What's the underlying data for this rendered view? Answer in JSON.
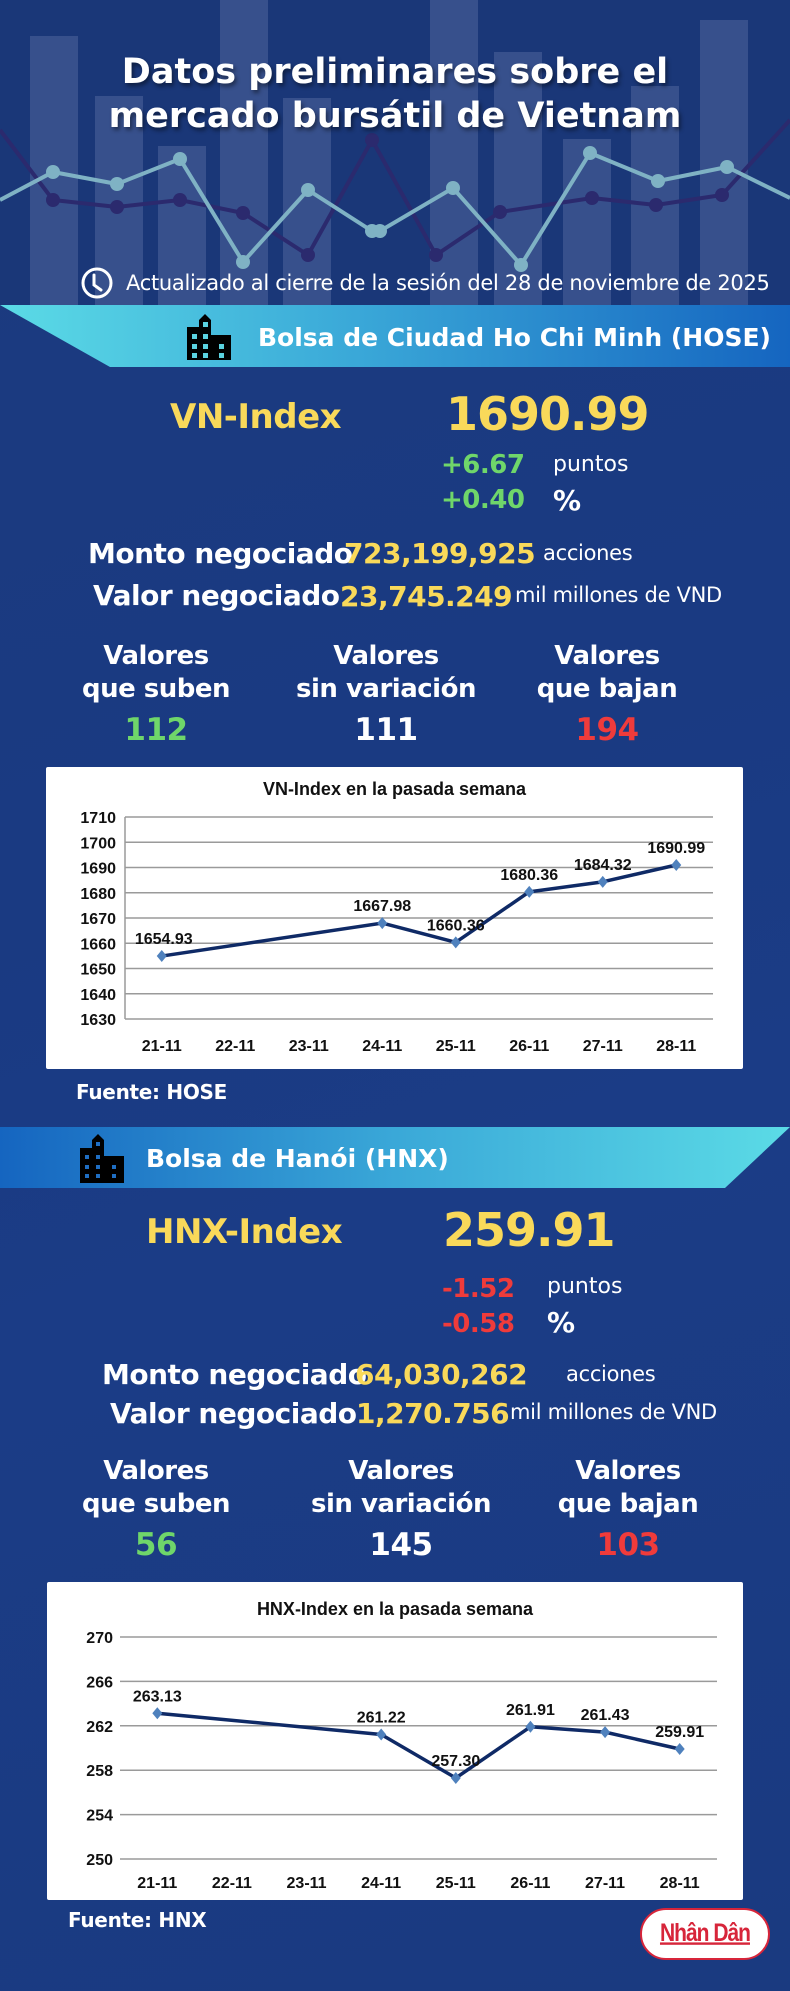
{
  "header": {
    "title_line1": "Datos preliminares sobre el",
    "title_line2": "mercado bursátil de Vietnam",
    "updated": "Actualizado al cierre de la sesión del 28 de noviembre de 2025",
    "icon": "clock-icon"
  },
  "colors": {
    "background": "#1b3a80",
    "accent_yellow": "#f9d95a",
    "up_green": "#6fd66a",
    "down_red": "#ef3b3b",
    "banner_cyan": "#5bd9e4",
    "banner_blue": "#1565c0",
    "chart_line": "#0f2a66",
    "chart_marker": "#4f81bd"
  },
  "hose": {
    "banner_title": "Bolsa de Ciudad Ho Chi Minh (HOSE)",
    "banner_icon": "building-icon",
    "index_name": "VN-Index",
    "index_value": "1690.99",
    "change_points": "+6.67",
    "change_points_unit": "puntos",
    "change_percent": "+0.40",
    "change_percent_unit": "%",
    "volume_label": "Monto negociado",
    "volume_value": "723,199,925",
    "volume_unit": "acciones",
    "value_label": "Valor negociado",
    "value_value": "23,745.249",
    "value_unit": "mil millones de VND",
    "advancers_label_1": "Valores",
    "advancers_label_2": "que suben",
    "advancers": "112",
    "unchanged_label_1": "Valores",
    "unchanged_label_2": "sin variación",
    "unchanged": "111",
    "decliners_label_1": "Valores",
    "decliners_label_2": "que bajan",
    "decliners": "194",
    "source": "Fuente: HOSE"
  },
  "hnx": {
    "banner_title": "Bolsa de Hanói (HNX)",
    "banner_icon": "building-icon",
    "index_name": "HNX-Index",
    "index_value": "259.91",
    "change_points": "-1.52",
    "change_points_unit": "puntos",
    "change_percent": "-0.58",
    "change_percent_unit": "%",
    "volume_label": "Monto negociado",
    "volume_value": "64,030,262",
    "volume_unit": "acciones",
    "value_label": "Valor negociado",
    "value_value": "1,270.756",
    "value_unit": "mil millones de VND",
    "advancers_label_1": "Valores",
    "advancers_label_2": "que suben",
    "advancers": "56",
    "unchanged_label_1": "Valores",
    "unchanged_label_2": "sin variación",
    "unchanged": "145",
    "decliners_label_1": "Valores",
    "decliners_label_2": "que bajan",
    "decliners": "103",
    "source": "Fuente:  HNX"
  },
  "logo": {
    "text": "Nhân Dân"
  },
  "chart_data": [
    {
      "type": "line",
      "title": "VN-Index en la pasada semana",
      "xlabel": "",
      "ylabel": "",
      "categories": [
        "21-11",
        "22-11",
        "23-11",
        "24-11",
        "25-11",
        "26-11",
        "27-11",
        "28-11"
      ],
      "points": [
        {
          "x": "21-11",
          "y": 1654.93,
          "label": "1654.93"
        },
        {
          "x": "24-11",
          "y": 1667.98,
          "label": "1667.98"
        },
        {
          "x": "25-11",
          "y": 1660.36,
          "label": "1660.36"
        },
        {
          "x": "26-11",
          "y": 1680.36,
          "label": "1680.36"
        },
        {
          "x": "27-11",
          "y": 1684.32,
          "label": "1684.32"
        },
        {
          "x": "28-11",
          "y": 1690.99,
          "label": "1690.99"
        }
      ],
      "yticks": [
        1630,
        1640,
        1650,
        1660,
        1670,
        1680,
        1690,
        1700,
        1710
      ],
      "ylim": [
        1630,
        1710
      ],
      "grid": true,
      "legend": "none"
    },
    {
      "type": "line",
      "title": "HNX-Index en la pasada semana",
      "xlabel": "",
      "ylabel": "",
      "categories": [
        "21-11",
        "22-11",
        "23-11",
        "24-11",
        "25-11",
        "26-11",
        "27-11",
        "28-11"
      ],
      "points": [
        {
          "x": "21-11",
          "y": 263.13,
          "label": "263.13"
        },
        {
          "x": "24-11",
          "y": 261.22,
          "label": "261.22"
        },
        {
          "x": "25-11",
          "y": 257.3,
          "label": "257.30"
        },
        {
          "x": "26-11",
          "y": 261.91,
          "label": "261.91"
        },
        {
          "x": "27-11",
          "y": 261.43,
          "label": "261.43"
        },
        {
          "x": "28-11",
          "y": 259.91,
          "label": "259.91"
        }
      ],
      "yticks": [
        250,
        254,
        258,
        262,
        266,
        270
      ],
      "ylim": [
        250,
        270
      ],
      "grid": true,
      "legend": "none"
    }
  ]
}
